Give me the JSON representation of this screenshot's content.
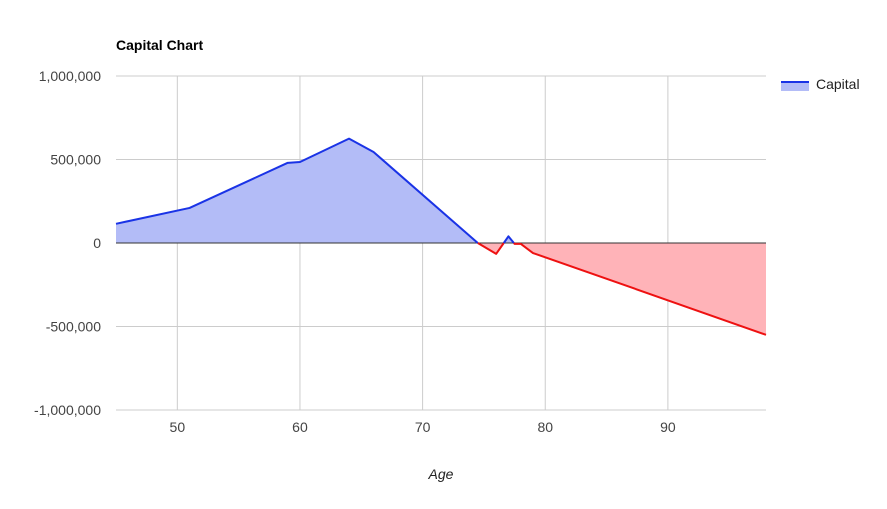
{
  "chart_data": {
    "type": "area",
    "title": "Capital Chart",
    "xlabel": "Age",
    "ylabel": "",
    "xlim": [
      45,
      98
    ],
    "ylim": [
      -1000000,
      1000000
    ],
    "x_ticks": [
      50,
      60,
      70,
      80,
      90
    ],
    "y_ticks": [
      1000000,
      500000,
      0,
      -500000,
      -1000000
    ],
    "x_tick_labels": [
      "50",
      "60",
      "70",
      "80",
      "90"
    ],
    "y_tick_labels": [
      "1,000,000",
      "500,000",
      "0",
      "-500,000",
      "-1,000,000"
    ],
    "grid": true,
    "legend_position": "right",
    "colors": {
      "positive_line": "#1a33e6",
      "positive_fill": "#b3bcf7",
      "negative_line": "#ee1111",
      "negative_fill": "#ffb3b8",
      "grid": "#cccccc",
      "zero_line": "#333333"
    },
    "series": [
      {
        "name": "Capital",
        "x": [
          45,
          51,
          59,
          60,
          64,
          66,
          74.5,
          76,
          77,
          77.5,
          78,
          79,
          86,
          98
        ],
        "values": [
          115000,
          210000,
          480000,
          485000,
          625000,
          545000,
          0,
          -65000,
          40000,
          -5000,
          -5000,
          -60000,
          -240000,
          -550000
        ]
      }
    ]
  }
}
